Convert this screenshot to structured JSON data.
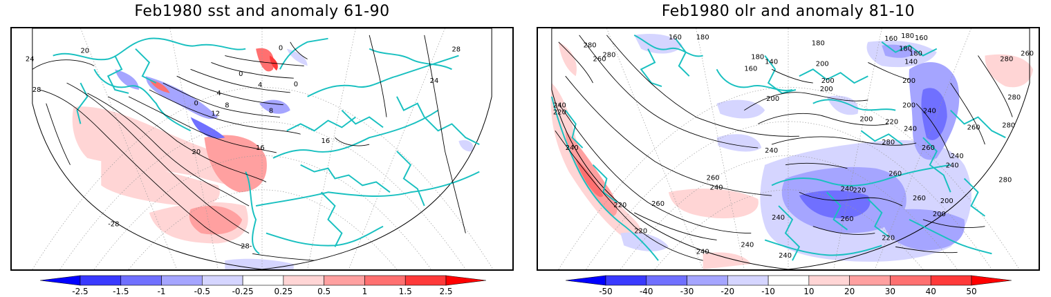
{
  "panels": [
    {
      "title": "Feb1980 sst and anomaly 61-90",
      "contour_labels": [
        "24",
        "20",
        "28",
        "0",
        "4",
        "8",
        "12",
        "16",
        "20",
        "-28",
        "28-",
        "16",
        "24",
        "28",
        "0",
        "0",
        "0",
        "4",
        "8"
      ],
      "colorbar": {
        "labels": [
          "-2.5",
          "-1.5",
          "-1",
          "-0.5",
          "-0.25",
          "0.25",
          "0.5",
          "1",
          "1.5",
          "2.5"
        ],
        "colors": [
          "#0000ff",
          "#3a3aff",
          "#7070ff",
          "#a5a5ff",
          "#d5d5ff",
          "#ffffff",
          "#ffd5d5",
          "#ffa0a0",
          "#ff7070",
          "#ff3a3a",
          "#ff0000"
        ]
      }
    },
    {
      "title": "Feb1980 olr and anomaly 81-10",
      "contour_labels": [
        "160",
        "180",
        "280",
        "260",
        "280",
        "180",
        "140",
        "160",
        "180",
        "160",
        "180",
        "200",
        "200",
        "200",
        "180",
        "160",
        "140",
        "180",
        "200",
        "280",
        "260",
        "280",
        "200",
        "240",
        "240",
        "200",
        "220",
        "200",
        "260",
        "280",
        "220",
        "240",
        "240",
        "260",
        "260",
        "240",
        "280",
        "260",
        "240",
        "260",
        "220",
        "260",
        "240",
        "260",
        "240",
        "200",
        "240",
        "200",
        "220",
        "240",
        "240",
        "240",
        "220",
        "280",
        "220",
        "240"
      ],
      "colorbar": {
        "labels": [
          "-50",
          "-40",
          "-30",
          "-20",
          "-10",
          "10",
          "20",
          "30",
          "40",
          "50"
        ],
        "colors": [
          "#0000ff",
          "#3a3aff",
          "#7070ff",
          "#a5a5ff",
          "#d5d5ff",
          "#ffffff",
          "#ffd5d5",
          "#ffa0a0",
          "#ff7070",
          "#ff3a3a",
          "#ff0000"
        ]
      }
    }
  ],
  "colors": {
    "coast": "#19c0c0",
    "contour": "#000000",
    "grid": "#999999"
  }
}
